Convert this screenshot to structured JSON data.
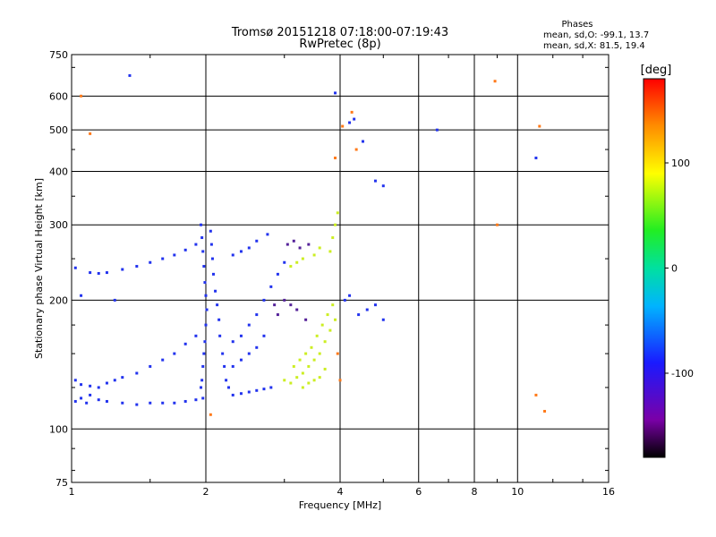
{
  "chart_data": {
    "type": "scatter",
    "title": "Tromsø 20151218 07:18:00-07:19:43",
    "subtitle": "RwPretec (8p)",
    "xlabel": "Frequency [MHz]",
    "ylabel": "Stationary phase Virtual Height [km]",
    "x_scale": "log",
    "y_scale": "log",
    "xlim": [
      1,
      16
    ],
    "ylim": [
      75,
      750
    ],
    "x_ticks": [
      "1",
      "2",
      "4",
      "6",
      "8",
      "10",
      "16"
    ],
    "y_ticks": [
      "75",
      "100",
      "200",
      "300",
      "400",
      "500",
      "600",
      "750"
    ],
    "grid": true,
    "phase_summary": {
      "heading": "Phases",
      "line_o": "mean, sd,O: -99.1, 13.7",
      "line_x": "mean, sd,X:  81.5, 19.4"
    },
    "colorbar": {
      "label": "[deg]",
      "ticks": [
        "100",
        "0",
        "-100"
      ],
      "range": [
        -180,
        180
      ]
    },
    "series": [
      {
        "values": [
          [
            1.02,
            116
          ],
          [
            1.05,
            118
          ],
          [
            1.08,
            115
          ],
          [
            1.1,
            120
          ],
          [
            1.15,
            117
          ],
          [
            1.2,
            116
          ],
          [
            1.3,
            115
          ],
          [
            1.4,
            114
          ],
          [
            1.5,
            115
          ],
          [
            1.6,
            115
          ],
          [
            1.7,
            115
          ],
          [
            1.8,
            116
          ],
          [
            1.9,
            117
          ],
          [
            1.97,
            118
          ],
          [
            1.02,
            130
          ],
          [
            1.05,
            127
          ],
          [
            1.1,
            126
          ],
          [
            1.15,
            125
          ],
          [
            1.2,
            128
          ],
          [
            1.25,
            130
          ],
          [
            1.3,
            132
          ],
          [
            1.4,
            135
          ],
          [
            1.5,
            140
          ],
          [
            1.6,
            145
          ],
          [
            1.7,
            150
          ],
          [
            1.8,
            158
          ],
          [
            1.9,
            165
          ],
          [
            1.02,
            238
          ],
          [
            1.1,
            232
          ],
          [
            1.15,
            231
          ],
          [
            1.2,
            232
          ],
          [
            1.3,
            236
          ],
          [
            1.4,
            240
          ],
          [
            1.5,
            245
          ],
          [
            1.6,
            250
          ],
          [
            1.7,
            255
          ],
          [
            1.8,
            262
          ],
          [
            1.9,
            270
          ],
          [
            1.95,
            300
          ],
          [
            1.96,
            280
          ],
          [
            1.97,
            260
          ],
          [
            1.98,
            240
          ],
          [
            1.99,
            220
          ],
          [
            2.0,
            205
          ],
          [
            2.01,
            190
          ],
          [
            2.0,
            175
          ],
          [
            1.99,
            160
          ],
          [
            1.98,
            150
          ],
          [
            1.97,
            140
          ],
          [
            1.96,
            130
          ],
          [
            1.95,
            125
          ],
          [
            2.05,
            290
          ],
          [
            2.06,
            270
          ],
          [
            2.07,
            250
          ],
          [
            2.08,
            230
          ],
          [
            2.1,
            210
          ],
          [
            2.12,
            195
          ],
          [
            2.14,
            180
          ],
          [
            2.15,
            165
          ],
          [
            2.18,
            150
          ],
          [
            2.2,
            140
          ],
          [
            2.22,
            130
          ],
          [
            2.25,
            125
          ],
          [
            2.3,
            120
          ],
          [
            2.4,
            121
          ],
          [
            2.5,
            122
          ],
          [
            2.6,
            123
          ],
          [
            2.7,
            124
          ],
          [
            2.8,
            125
          ],
          [
            2.3,
            160
          ],
          [
            2.4,
            165
          ],
          [
            2.5,
            175
          ],
          [
            2.6,
            185
          ],
          [
            2.7,
            200
          ],
          [
            2.8,
            215
          ],
          [
            2.9,
            230
          ],
          [
            3.0,
            245
          ],
          [
            2.3,
            140
          ],
          [
            2.4,
            145
          ],
          [
            2.5,
            150
          ],
          [
            2.6,
            155
          ],
          [
            2.7,
            165
          ],
          [
            2.3,
            255
          ],
          [
            2.4,
            260
          ],
          [
            2.5,
            265
          ],
          [
            2.6,
            275
          ],
          [
            2.75,
            285
          ],
          [
            1.05,
            205
          ],
          [
            1.25,
            200
          ],
          [
            4.3,
            530
          ],
          [
            4.2,
            520
          ],
          [
            3.9,
            610
          ],
          [
            4.5,
            470
          ],
          [
            4.8,
            380
          ],
          [
            5.0,
            370
          ],
          [
            11.0,
            430
          ],
          [
            6.6,
            500
          ],
          [
            1.35,
            670
          ],
          [
            4.4,
            185
          ],
          [
            4.6,
            190
          ],
          [
            4.8,
            195
          ],
          [
            5.0,
            180
          ],
          [
            4.1,
            200
          ],
          [
            4.2,
            205
          ]
        ]
      },
      {
        "values": [
          [
            3.0,
            130
          ],
          [
            3.1,
            128
          ],
          [
            3.2,
            132
          ],
          [
            3.3,
            135
          ],
          [
            3.4,
            140
          ],
          [
            3.5,
            145
          ],
          [
            3.6,
            150
          ],
          [
            3.7,
            160
          ],
          [
            3.8,
            170
          ],
          [
            3.9,
            180
          ],
          [
            3.15,
            140
          ],
          [
            3.25,
            145
          ],
          [
            3.35,
            150
          ],
          [
            3.45,
            155
          ],
          [
            3.55,
            165
          ],
          [
            3.65,
            175
          ],
          [
            3.75,
            185
          ],
          [
            3.85,
            195
          ],
          [
            3.3,
            125
          ],
          [
            3.4,
            128
          ],
          [
            3.5,
            130
          ],
          [
            3.6,
            132
          ],
          [
            3.7,
            138
          ],
          [
            3.1,
            240
          ],
          [
            3.2,
            245
          ],
          [
            3.3,
            250
          ],
          [
            3.5,
            255
          ],
          [
            3.6,
            265
          ],
          [
            3.8,
            260
          ],
          [
            3.85,
            280
          ],
          [
            3.9,
            300
          ],
          [
            3.95,
            320
          ]
        ]
      },
      {
        "values": [
          [
            1.05,
            600
          ],
          [
            1.1,
            490
          ],
          [
            4.25,
            550
          ],
          [
            4.05,
            510
          ],
          [
            4.35,
            450
          ],
          [
            8.9,
            650
          ],
          [
            9.0,
            300
          ],
          [
            11.0,
            120
          ],
          [
            11.5,
            110
          ],
          [
            11.2,
            510
          ],
          [
            3.9,
            430
          ],
          [
            2.05,
            108
          ],
          [
            4.0,
            130
          ],
          [
            3.95,
            150
          ]
        ]
      },
      {
        "values": [
          [
            3.05,
            270
          ],
          [
            3.15,
            275
          ],
          [
            3.25,
            265
          ],
          [
            3.4,
            270
          ],
          [
            3.0,
            200
          ],
          [
            3.1,
            195
          ],
          [
            3.2,
            190
          ],
          [
            3.35,
            180
          ],
          [
            2.85,
            195
          ],
          [
            2.9,
            185
          ]
        ]
      }
    ],
    "series_colors": [
      "#2233ee",
      "#ccee22",
      "#ff7a1a",
      "#552299"
    ]
  }
}
